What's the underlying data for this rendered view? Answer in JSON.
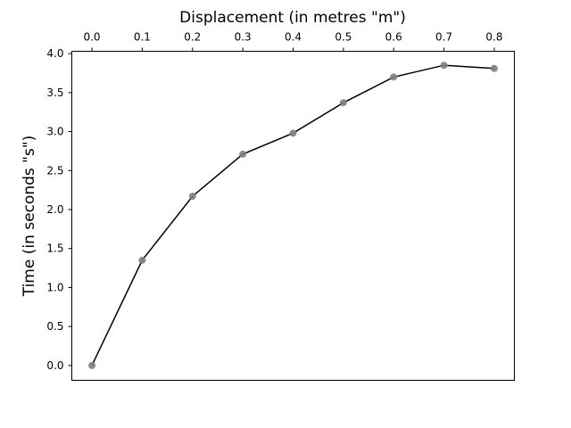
{
  "chart_data": {
    "type": "line",
    "title": "",
    "xlabel": "Displacement (in metres \"m\")",
    "ylabel": "Time (in seconds \"s\")",
    "x_axis_position": "top",
    "xlim": [
      -0.04,
      0.84
    ],
    "ylim": [
      -0.19,
      4.03
    ],
    "x_ticks": [
      0.0,
      0.1,
      0.2,
      0.3,
      0.4,
      0.5,
      0.6,
      0.7,
      0.8
    ],
    "x_tick_labels": [
      "0.0",
      "0.1",
      "0.2",
      "0.3",
      "0.4",
      "0.5",
      "0.6",
      "0.7",
      "0.8"
    ],
    "y_ticks": [
      0.0,
      0.5,
      1.0,
      1.5,
      2.0,
      2.5,
      3.0,
      3.5,
      4.0
    ],
    "y_tick_labels": [
      "0.0",
      "0.5",
      "1.0",
      "1.5",
      "2.0",
      "2.5",
      "3.0",
      "3.5",
      "4.0"
    ],
    "grid": false,
    "legend": "none",
    "series": [
      {
        "x": [
          0.0,
          0.1,
          0.2,
          0.3,
          0.4,
          0.5,
          0.6,
          0.7,
          0.8
        ],
        "y": [
          0.0,
          1.35,
          2.17,
          2.71,
          2.98,
          3.37,
          3.7,
          3.85,
          3.81
        ],
        "line_color": "#000000",
        "marker_color": "#808080"
      }
    ]
  }
}
